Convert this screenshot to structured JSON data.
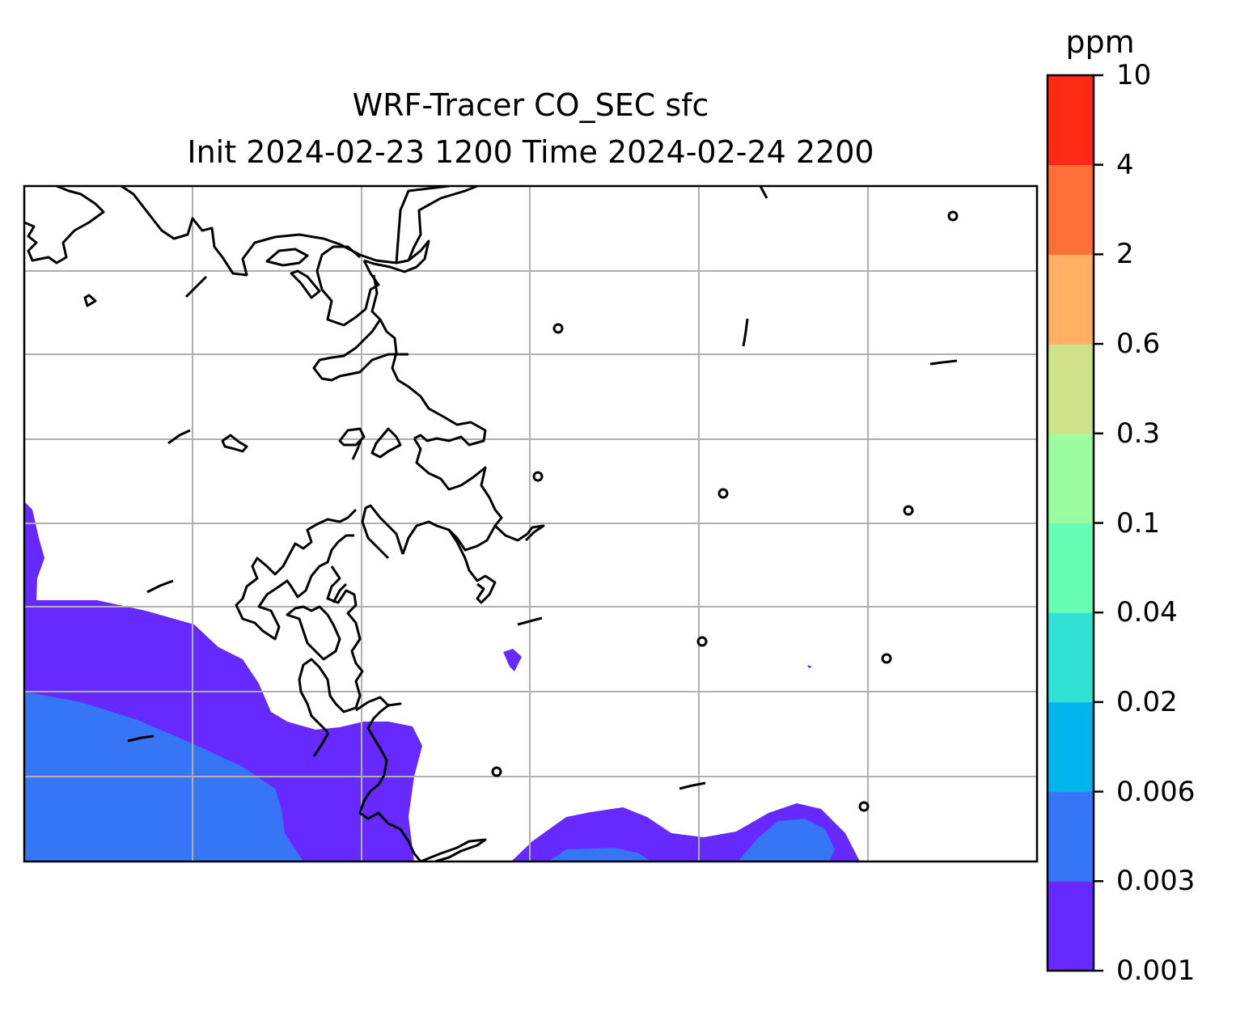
{
  "title": "WRF-Tracer CO_SEC sfc",
  "subtitle": "Init 2024-02-23 1200 Time 2024-02-24 2200",
  "colorbar": {
    "units": "ppm",
    "levels": [
      "0.001",
      "0.003",
      "0.006",
      "0.02",
      "0.04",
      "0.1",
      "0.3",
      "0.6",
      "2",
      "4",
      "10"
    ],
    "colors": [
      "#6629ff",
      "#3575f6",
      "#00b5ec",
      "#32e1d5",
      "#68fdb4",
      "#9cfda0",
      "#cfe28a",
      "#ffb063",
      "#ff7038",
      "#ff2a15"
    ]
  },
  "chart_data": {
    "type": "heatmap",
    "variable": "CO_SEC surface tracer concentration",
    "units": "ppm",
    "grid": true,
    "regions_present": [
      {
        "range": "0.001-0.003",
        "color": "#6629ff"
      },
      {
        "range": "0.003-0.006",
        "color": "#3575f6"
      }
    ]
  },
  "map": {
    "coastline_color": "#000000",
    "gridline_color": "#b0b0b0"
  }
}
